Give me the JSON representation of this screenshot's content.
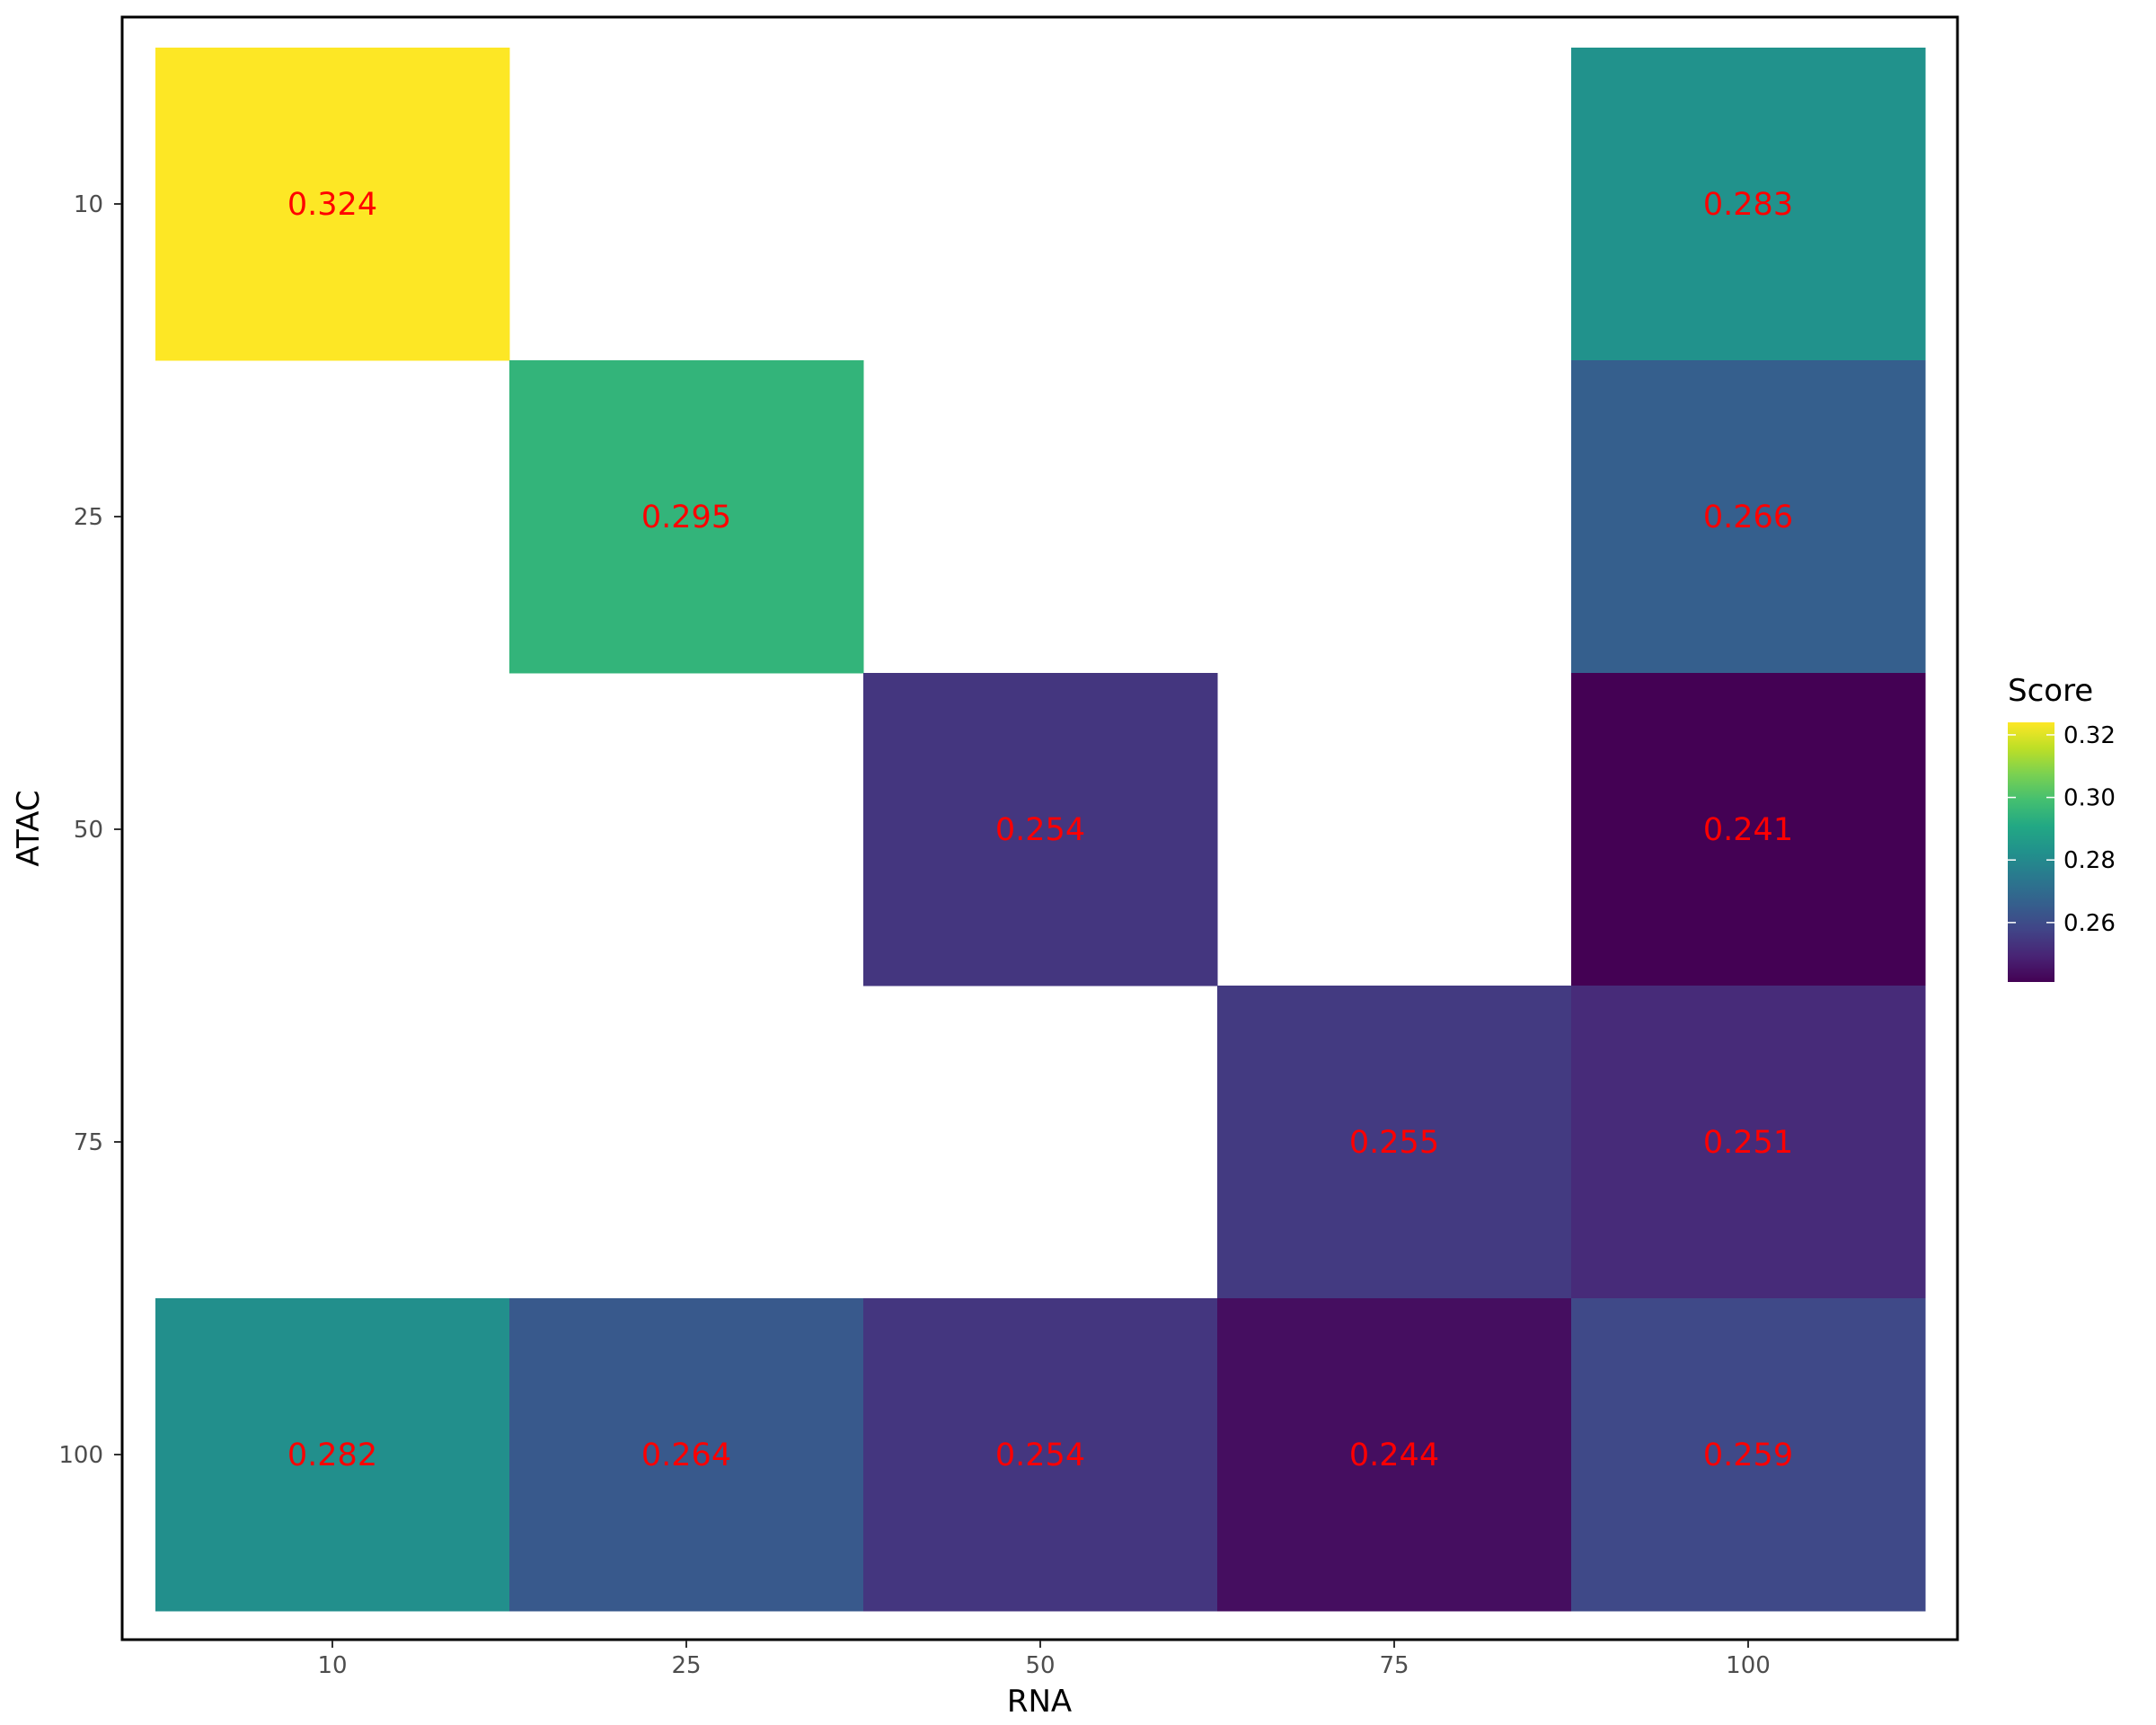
{
  "chart_data": {
    "type": "heatmap",
    "xlabel": "RNA",
    "ylabel": "ATAC",
    "x_categories": [
      "10",
      "25",
      "50",
      "75",
      "100"
    ],
    "y_categories": [
      "10",
      "25",
      "50",
      "75",
      "100"
    ],
    "cells": [
      {
        "x": "10",
        "y": "10",
        "value": 0.324,
        "label": "0.324"
      },
      {
        "x": "100",
        "y": "10",
        "value": 0.283,
        "label": "0.283"
      },
      {
        "x": "25",
        "y": "25",
        "value": 0.295,
        "label": "0.295"
      },
      {
        "x": "100",
        "y": "25",
        "value": 0.266,
        "label": "0.266"
      },
      {
        "x": "50",
        "y": "50",
        "value": 0.254,
        "label": "0.254"
      },
      {
        "x": "100",
        "y": "50",
        "value": 0.241,
        "label": "0.241"
      },
      {
        "x": "75",
        "y": "75",
        "value": 0.255,
        "label": "0.255"
      },
      {
        "x": "100",
        "y": "75",
        "value": 0.251,
        "label": "0.251"
      },
      {
        "x": "10",
        "y": "100",
        "value": 0.282,
        "label": "0.282"
      },
      {
        "x": "25",
        "y": "100",
        "value": 0.264,
        "label": "0.264"
      },
      {
        "x": "50",
        "y": "100",
        "value": 0.254,
        "label": "0.254"
      },
      {
        "x": "75",
        "y": "100",
        "value": 0.244,
        "label": "0.244"
      },
      {
        "x": "100",
        "y": "100",
        "value": 0.259,
        "label": "0.259"
      }
    ],
    "colorscale": "viridis",
    "value_range": [
      0.241,
      0.324
    ],
    "cell_label_color": "#ff0000",
    "legend": {
      "title": "Score",
      "placement": "right",
      "ticks": [
        0.26,
        0.28,
        0.3,
        0.32
      ],
      "tick_labels": [
        "0.26",
        "0.28",
        "0.30",
        "0.32"
      ]
    },
    "grid": false,
    "panel_border": true
  }
}
